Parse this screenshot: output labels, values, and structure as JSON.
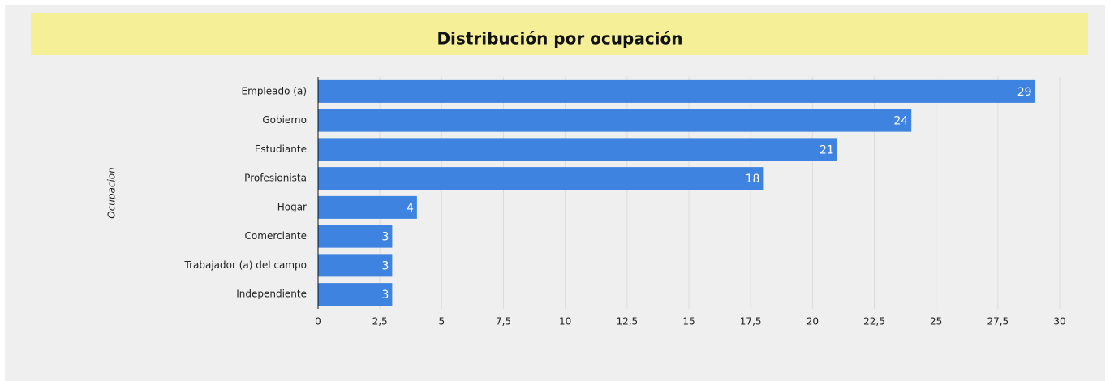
{
  "chart_data": {
    "type": "bar",
    "orientation": "horizontal",
    "title": "Distribución por ocupación",
    "y_label": "Ocupacion",
    "categories": [
      "Empleado (a)",
      "Gobierno",
      "Estudiante",
      "Profesionista",
      "Hogar",
      "Comerciante",
      "Trabajador (a) del campo",
      "Independiente"
    ],
    "values": [
      29,
      24,
      21,
      18,
      4,
      3,
      3,
      3
    ],
    "color": "#3f83e0",
    "xlim": [
      0,
      30
    ],
    "xticks": [
      0,
      {
        "value": 2.5,
        "label": "2,5"
      },
      5,
      {
        "value": 7.5,
        "label": "7,5"
      },
      10,
      {
        "value": 12.5,
        "label": "12,5"
      },
      15,
      {
        "value": 17.5,
        "label": "17,5"
      },
      20,
      {
        "value": 22.5,
        "label": "22,5"
      },
      25,
      {
        "value": 27.5,
        "label": "27,5"
      },
      30
    ],
    "grid": true
  }
}
